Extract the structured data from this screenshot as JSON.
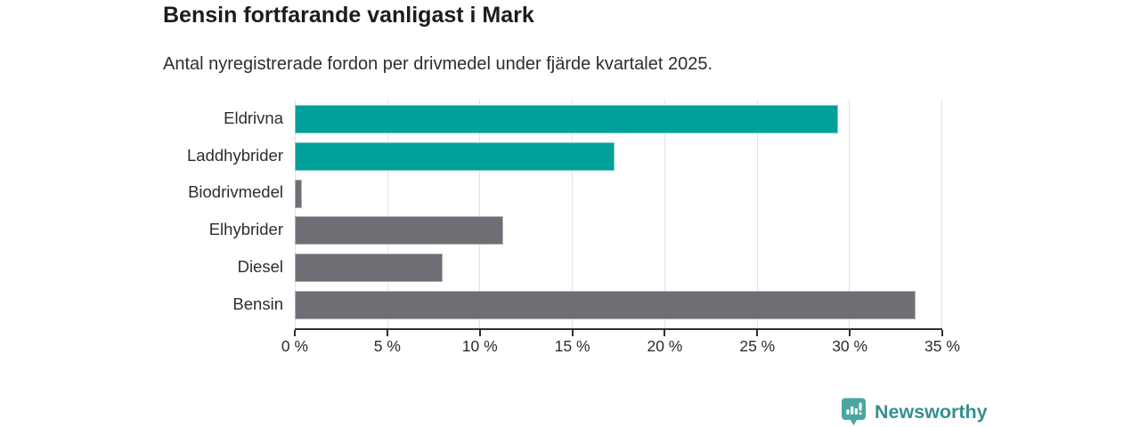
{
  "chart_data": {
    "type": "bar",
    "orientation": "horizontal",
    "title": "Bensin fortfarande vanligast i Mark",
    "subtitle": "Antal nyregistrerade fordon per drivmedel under fjärde kvartalet 2025.",
    "categories": [
      "Eldrivna",
      "Laddhybrider",
      "Biodrivmedel",
      "Elhybrider",
      "Diesel",
      "Bensin"
    ],
    "values": [
      29.4,
      17.3,
      0.4,
      11.3,
      8.0,
      33.6
    ],
    "unit": "%",
    "bar_colors": [
      "#00A09A",
      "#00A09A",
      "#6E6E74",
      "#6E6E74",
      "#6E6E74",
      "#6E6E74"
    ],
    "xlabel": "",
    "ylabel": "",
    "xlim": [
      0,
      35
    ],
    "x_ticks": [
      "0 %",
      "5 %",
      "10 %",
      "15 %",
      "20 %",
      "25 %",
      "30 %",
      "35 %"
    ],
    "grid": true,
    "legend": false
  },
  "footer": {
    "brand": "Newsworthy"
  },
  "colors": {
    "accent_teal": "#00A09A",
    "bar_gray": "#6E6E74",
    "gridline": "#E4E4E4",
    "axis": "#2F2F2F",
    "brand_text_teal": "#33908E",
    "brand_mark_teal": "#4BA6A1"
  }
}
